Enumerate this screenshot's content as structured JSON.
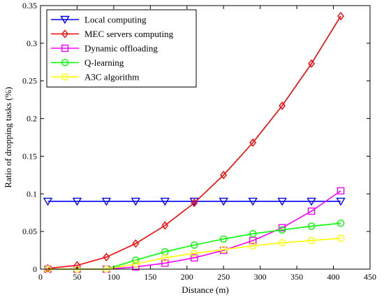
{
  "chart_data": {
    "type": "line",
    "xlabel": "Distance (m)",
    "ylabel": "Ratio of dropping tasks (%)",
    "xlim": [
      0,
      450
    ],
    "ylim": [
      0,
      0.35
    ],
    "xticks": [
      0,
      50,
      100,
      150,
      200,
      250,
      300,
      350,
      400,
      450
    ],
    "yticks": [
      0,
      0.05,
      0.1,
      0.15,
      0.2,
      0.25,
      0.3,
      0.35
    ],
    "xtick_labels": [
      "0",
      "50",
      "100",
      "150",
      "200",
      "250",
      "300",
      "350",
      "400",
      "450"
    ],
    "ytick_labels": [
      "0",
      "0.05",
      "0.1",
      "0.15",
      "0.2",
      "0.25",
      "0.3",
      "0.35"
    ],
    "grid": false,
    "legend_position": "top-left",
    "x": [
      10,
      50,
      90,
      130,
      170,
      210,
      250,
      290,
      330,
      370,
      410
    ],
    "series": [
      {
        "name": "Local computing",
        "color": "#0000ff",
        "marker": "triangle-down",
        "values": [
          0.09,
          0.09,
          0.09,
          0.09,
          0.09,
          0.09,
          0.09,
          0.09,
          0.09,
          0.09,
          0.09
        ]
      },
      {
        "name": "MEC servers computing",
        "color": "#ff0000",
        "marker": "diamond",
        "values": [
          0.001,
          0.005,
          0.016,
          0.034,
          0.058,
          0.088,
          0.125,
          0.168,
          0.217,
          0.273,
          0.336
        ]
      },
      {
        "name": "Dynamic offloading",
        "color": "#ff00ff",
        "marker": "square",
        "values": [
          0.0,
          0.0,
          0.0,
          0.003,
          0.008,
          0.015,
          0.025,
          0.038,
          0.055,
          0.077,
          0.104
        ]
      },
      {
        "name": "Q-learning",
        "color": "#00ff00",
        "marker": "circle",
        "values": [
          0.0,
          0.0,
          0.0,
          0.012,
          0.023,
          0.032,
          0.04,
          0.047,
          0.052,
          0.057,
          0.061
        ]
      },
      {
        "name": "A3C algorithm",
        "color": "#ffff00",
        "marker": "circle",
        "values": [
          0.0,
          0.0,
          0.0,
          0.007,
          0.015,
          0.021,
          0.026,
          0.031,
          0.035,
          0.038,
          0.041
        ]
      }
    ]
  }
}
